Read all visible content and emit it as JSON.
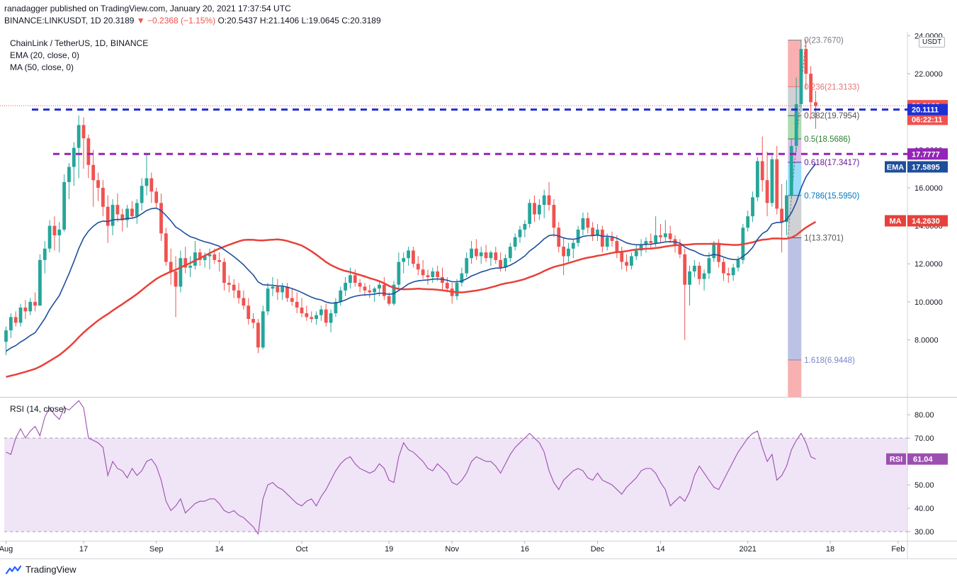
{
  "header": {
    "line1": "ranadagger published on TradingView.com, January 20, 2021 17:37:54 UTC",
    "symbol": "BINANCE:LINKUSDT, 1D",
    "last": "20.3189",
    "change": "−0.2368 (−1.15%)",
    "ohlc": "O:20.5437 H:21.1406 L:19.0645 C:20.3189"
  },
  "legend": {
    "title": "ChainLink / TetherUS, 1D, BINANCE",
    "ema": "EMA (20, close, 0)",
    "ma": "MA (50, close, 0)",
    "rsi": "RSI (14, close)"
  },
  "currency_label": "USDT",
  "brand": "TradingView",
  "colors": {
    "up": "#26a69a",
    "down": "#ef5350",
    "ema": "#1e4e9c",
    "ma": "#e8413a",
    "rsi": "#9c4fb1",
    "blue_dash": "#1f2fd4",
    "purple_dash": "#9425b8"
  },
  "chart_data": {
    "type": "candlestick",
    "title": "ChainLink / TetherUS, 1D, BINANCE",
    "ylim": [
      5.0,
      24.2
    ],
    "y_ticks": [
      "8.0000",
      "10.0000",
      "12.0000",
      "14.0000",
      "16.0000",
      "18.0000",
      "20.0000",
      "22.0000",
      "24.0000"
    ],
    "x_ticks": [
      {
        "label": "Aug",
        "day": 0
      },
      {
        "label": "17",
        "day": 16
      },
      {
        "label": "Sep",
        "day": 31
      },
      {
        "label": "14",
        "day": 44
      },
      {
        "label": "Oct",
        "day": 61
      },
      {
        "label": "19",
        "day": 79
      },
      {
        "label": "Nov",
        "day": 92
      },
      {
        "label": "16",
        "day": 107
      },
      {
        "label": "Dec",
        "day": 122
      },
      {
        "label": "14",
        "day": 135
      },
      {
        "label": "2021",
        "day": 153
      },
      {
        "label": "18",
        "day": 170
      },
      {
        "label": "Feb",
        "day": 184
      }
    ],
    "candles_ohlc": [
      [
        7.9,
        8.7,
        7.2,
        8.5
      ],
      [
        8.5,
        9.4,
        8.1,
        9.2
      ],
      [
        9.2,
        9.5,
        8.7,
        8.9
      ],
      [
        8.9,
        9.9,
        8.7,
        9.7
      ],
      [
        9.7,
        10.1,
        9.1,
        9.5
      ],
      [
        9.5,
        10.2,
        9.3,
        10.0
      ],
      [
        10.0,
        10.5,
        9.5,
        9.8
      ],
      [
        9.8,
        12.5,
        9.8,
        12.2
      ],
      [
        12.2,
        13.2,
        11.5,
        12.8
      ],
      [
        12.8,
        14.3,
        12.6,
        14.0
      ],
      [
        14.0,
        14.5,
        12.7,
        13.5
      ],
      [
        13.5,
        14.2,
        12.6,
        13.8
      ],
      [
        13.8,
        16.7,
        13.7,
        16.3
      ],
      [
        16.3,
        17.3,
        15.4,
        17.1
      ],
      [
        17.1,
        18.4,
        16.1,
        18.1
      ],
      [
        18.1,
        19.8,
        16.5,
        19.3
      ],
      [
        19.3,
        19.7,
        17.0,
        18.6
      ],
      [
        18.6,
        18.8,
        16.5,
        17.2
      ],
      [
        17.2,
        18.0,
        15.0,
        16.4
      ],
      [
        16.4,
        16.8,
        15.3,
        16.0
      ],
      [
        16.0,
        16.4,
        14.5,
        15.0
      ],
      [
        15.0,
        15.6,
        13.1,
        14.0
      ],
      [
        14.0,
        15.4,
        13.5,
        15.1
      ],
      [
        15.1,
        15.7,
        14.2,
        14.6
      ],
      [
        14.6,
        14.9,
        13.7,
        14.3
      ],
      [
        14.3,
        15.1,
        13.9,
        14.9
      ],
      [
        14.9,
        15.3,
        14.4,
        14.5
      ],
      [
        14.5,
        15.4,
        14.1,
        15.2
      ],
      [
        15.2,
        16.5,
        14.8,
        16.1
      ],
      [
        16.1,
        17.8,
        15.6,
        16.5
      ],
      [
        16.5,
        16.8,
        15.2,
        15.8
      ],
      [
        15.8,
        16.0,
        14.9,
        15.2
      ],
      [
        15.2,
        15.7,
        13.2,
        13.6
      ],
      [
        13.6,
        13.9,
        11.9,
        12.1
      ],
      [
        12.1,
        12.8,
        10.9,
        11.6
      ],
      [
        11.6,
        12.4,
        9.2,
        10.8
      ],
      [
        10.8,
        12.7,
        10.5,
        12.3
      ],
      [
        12.3,
        12.9,
        11.5,
        11.8
      ],
      [
        11.8,
        12.4,
        11.3,
        11.9
      ],
      [
        11.9,
        13.2,
        11.7,
        12.6
      ],
      [
        12.6,
        12.8,
        11.9,
        12.2
      ],
      [
        12.2,
        12.6,
        11.8,
        12.4
      ],
      [
        12.4,
        12.8,
        11.7,
        12.5
      ],
      [
        12.5,
        12.8,
        12.0,
        12.2
      ],
      [
        12.2,
        12.6,
        11.6,
        12.1
      ],
      [
        12.1,
        12.3,
        10.6,
        11.0
      ],
      [
        11.0,
        11.4,
        10.5,
        10.9
      ],
      [
        10.9,
        11.2,
        10.2,
        10.6
      ],
      [
        10.6,
        11.0,
        9.9,
        10.2
      ],
      [
        10.2,
        10.6,
        9.6,
        9.8
      ],
      [
        9.8,
        10.2,
        8.8,
        9.1
      ],
      [
        9.1,
        9.4,
        8.6,
        8.9
      ],
      [
        8.9,
        9.1,
        7.3,
        7.6
      ],
      [
        7.6,
        9.8,
        7.5,
        9.5
      ],
      [
        9.5,
        11.0,
        9.3,
        10.7
      ],
      [
        10.7,
        11.3,
        10.3,
        10.8
      ],
      [
        10.8,
        11.2,
        10.1,
        10.5
      ],
      [
        10.5,
        11.0,
        10.1,
        10.8
      ],
      [
        10.8,
        11.0,
        10.0,
        10.2
      ],
      [
        10.2,
        10.7,
        9.8,
        10.0
      ],
      [
        10.0,
        10.5,
        9.4,
        9.7
      ],
      [
        9.7,
        10.2,
        9.2,
        9.4
      ],
      [
        9.4,
        9.8,
        9.0,
        9.2
      ],
      [
        9.2,
        9.5,
        8.9,
        9.1
      ],
      [
        9.1,
        9.5,
        8.8,
        9.3
      ],
      [
        9.3,
        9.8,
        9.0,
        9.6
      ],
      [
        9.6,
        9.9,
        8.7,
        8.9
      ],
      [
        8.9,
        9.6,
        8.4,
        9.4
      ],
      [
        9.4,
        10.2,
        9.2,
        10.0
      ],
      [
        10.0,
        10.8,
        9.8,
        10.6
      ],
      [
        10.6,
        11.3,
        10.3,
        11.0
      ],
      [
        11.0,
        11.8,
        10.7,
        11.4
      ],
      [
        11.4,
        11.7,
        10.8,
        11.0
      ],
      [
        11.0,
        11.2,
        10.5,
        10.8
      ],
      [
        10.8,
        11.0,
        10.3,
        10.6
      ],
      [
        10.6,
        10.9,
        10.2,
        10.5
      ],
      [
        10.5,
        10.8,
        10.0,
        10.7
      ],
      [
        10.7,
        11.1,
        10.3,
        10.9
      ],
      [
        10.9,
        11.3,
        10.1,
        10.3
      ],
      [
        10.3,
        10.5,
        9.8,
        9.9
      ],
      [
        9.9,
        11.1,
        9.8,
        10.9
      ],
      [
        10.9,
        12.6,
        10.7,
        12.1
      ],
      [
        12.1,
        12.6,
        11.5,
        12.3
      ],
      [
        12.3,
        12.9,
        11.9,
        12.7
      ],
      [
        12.7,
        12.9,
        11.8,
        12.0
      ],
      [
        12.0,
        12.4,
        11.4,
        11.7
      ],
      [
        11.7,
        12.2,
        11.2,
        11.4
      ],
      [
        11.4,
        11.7,
        10.9,
        11.3
      ],
      [
        11.3,
        11.8,
        11.0,
        11.6
      ],
      [
        11.6,
        11.9,
        11.1,
        11.3
      ],
      [
        11.3,
        11.8,
        10.6,
        11.0
      ],
      [
        11.0,
        11.3,
        10.5,
        10.7
      ],
      [
        10.7,
        11.0,
        9.9,
        10.3
      ],
      [
        10.3,
        11.2,
        10.1,
        11.0
      ],
      [
        11.0,
        11.8,
        10.8,
        11.5
      ],
      [
        11.5,
        12.6,
        11.3,
        12.3
      ],
      [
        12.3,
        13.2,
        12.0,
        12.8
      ],
      [
        12.8,
        13.3,
        12.2,
        12.4
      ],
      [
        12.4,
        12.9,
        12.0,
        12.6
      ],
      [
        12.6,
        13.0,
        12.1,
        12.3
      ],
      [
        12.3,
        12.7,
        11.9,
        12.6
      ],
      [
        12.6,
        12.9,
        12.0,
        12.2
      ],
      [
        12.2,
        12.6,
        11.6,
        11.8
      ],
      [
        11.8,
        12.5,
        11.6,
        12.3
      ],
      [
        12.3,
        13.1,
        12.1,
        12.9
      ],
      [
        12.9,
        13.6,
        12.7,
        13.4
      ],
      [
        13.4,
        14.0,
        13.1,
        13.8
      ],
      [
        13.8,
        14.3,
        13.4,
        14.1
      ],
      [
        14.1,
        15.4,
        13.9,
        15.2
      ],
      [
        15.2,
        15.6,
        14.2,
        14.6
      ],
      [
        14.6,
        15.4,
        14.3,
        15.1
      ],
      [
        15.1,
        15.9,
        14.4,
        15.6
      ],
      [
        15.6,
        16.3,
        14.8,
        15.1
      ],
      [
        15.1,
        15.4,
        13.4,
        13.9
      ],
      [
        13.9,
        14.2,
        12.6,
        12.9
      ],
      [
        12.9,
        13.4,
        11.4,
        12.4
      ],
      [
        12.4,
        13.1,
        12.1,
        12.8
      ],
      [
        12.8,
        13.3,
        12.3,
        13.1
      ],
      [
        13.1,
        14.0,
        12.9,
        13.8
      ],
      [
        13.8,
        14.7,
        13.5,
        14.4
      ],
      [
        14.4,
        14.7,
        13.6,
        13.9
      ],
      [
        13.9,
        14.2,
        13.2,
        13.5
      ],
      [
        13.5,
        14.1,
        13.2,
        13.8
      ],
      [
        13.8,
        14.0,
        12.6,
        12.9
      ],
      [
        12.9,
        13.6,
        12.7,
        13.4
      ],
      [
        13.4,
        13.7,
        12.9,
        13.2
      ],
      [
        13.2,
        13.5,
        12.3,
        12.6
      ],
      [
        12.6,
        12.9,
        11.7,
        12.1
      ],
      [
        12.1,
        12.5,
        11.6,
        11.9
      ],
      [
        11.9,
        12.6,
        11.7,
        12.4
      ],
      [
        12.4,
        13.0,
        12.2,
        12.7
      ],
      [
        12.7,
        13.3,
        12.4,
        13.0
      ],
      [
        13.0,
        13.4,
        12.6,
        13.2
      ],
      [
        13.2,
        13.6,
        12.8,
        13.1
      ],
      [
        13.1,
        14.5,
        12.9,
        13.5
      ],
      [
        13.5,
        14.1,
        13.1,
        13.4
      ],
      [
        13.4,
        14.3,
        13.2,
        13.6
      ],
      [
        13.6,
        14.0,
        13.1,
        13.3
      ],
      [
        13.3,
        13.5,
        12.6,
        13.0
      ],
      [
        13.0,
        13.3,
        12.3,
        12.5
      ],
      [
        12.5,
        12.8,
        8.0,
        10.9
      ],
      [
        10.9,
        11.9,
        9.8,
        11.6
      ],
      [
        11.6,
        12.2,
        11.3,
        11.9
      ],
      [
        11.9,
        12.1,
        10.9,
        11.2
      ],
      [
        11.2,
        11.7,
        10.6,
        11.5
      ],
      [
        11.5,
        12.6,
        11.2,
        12.3
      ],
      [
        12.3,
        13.2,
        12.1,
        13.1
      ],
      [
        13.1,
        13.3,
        11.8,
        12.1
      ],
      [
        12.1,
        12.3,
        11.1,
        11.5
      ],
      [
        11.5,
        11.8,
        11.0,
        11.4
      ],
      [
        11.4,
        12.0,
        11.1,
        11.8
      ],
      [
        11.8,
        12.4,
        11.6,
        12.2
      ],
      [
        12.2,
        14.1,
        12.0,
        13.9
      ],
      [
        13.9,
        14.8,
        13.7,
        14.5
      ],
      [
        14.5,
        15.8,
        14.2,
        15.5
      ],
      [
        15.5,
        17.6,
        15.3,
        17.4
      ],
      [
        17.4,
        18.7,
        15.8,
        16.4
      ],
      [
        16.4,
        17.9,
        14.5,
        15.2
      ],
      [
        15.2,
        17.7,
        15.0,
        17.5
      ],
      [
        17.5,
        18.2,
        14.6,
        14.9
      ],
      [
        14.9,
        16.2,
        12.6,
        14.2
      ],
      [
        14.2,
        16.4,
        13.5,
        15.6
      ],
      [
        15.6,
        18.6,
        15.4,
        18.2
      ],
      [
        18.2,
        21.8,
        17.9,
        20.4
      ],
      [
        20.4,
        23.8,
        20.0,
        23.3
      ],
      [
        23.3,
        23.8,
        21.2,
        22.0
      ],
      [
        22.0,
        22.4,
        19.6,
        20.5
      ],
      [
        20.5,
        21.1,
        19.1,
        20.3
      ]
    ],
    "series": [
      {
        "name": "EMA (20, close, 0)",
        "end_value": "17.5895"
      },
      {
        "name": "MA (50, close, 0)",
        "end_value": "14.2630"
      }
    ],
    "levels": [
      {
        "label": "20.1111",
        "value": 20.1111,
        "color": "#1f2fd4"
      },
      {
        "label": "17.7777",
        "value": 17.7777,
        "color": "#9425b8"
      }
    ],
    "fib": [
      {
        "label": "0(23.7670)",
        "value": 23.767
      },
      {
        "label": "0.236(21.3133)",
        "value": 21.3133
      },
      {
        "label": "0.382(19.7954)",
        "value": 19.7954
      },
      {
        "label": "0.5(18.5686)",
        "value": 18.5686
      },
      {
        "label": "0.618(17.3417)",
        "value": 17.3417
      },
      {
        "label": "0.786(15.5950)",
        "value": 15.595
      },
      {
        "label": "1(13.3701)",
        "value": 13.3701
      },
      {
        "label": "1.618(6.9448)",
        "value": 6.9448
      }
    ],
    "price_tags": [
      {
        "label": "20.3189",
        "value": 20.3189,
        "color": "#ef5350"
      },
      {
        "label": "06:22:11",
        "value": 19.6,
        "color": "#ef5350"
      },
      {
        "label": "20.1111",
        "value": 20.1111,
        "color": "#1f2fd4"
      },
      {
        "label": "17.7777",
        "value": 17.7777,
        "color": "#9425b8"
      },
      {
        "label": "EMA 17.5895",
        "value": 17.1,
        "color": "#1e4e9c"
      },
      {
        "label": "MA 14.2630",
        "value": 14.263,
        "color": "#e8413a"
      }
    ],
    "rsi": {
      "ylim": [
        27,
        87
      ],
      "y_ticks": [
        "30.00",
        "40.00",
        "50.00",
        "60.00",
        "70.00",
        "80.00"
      ],
      "band": [
        30,
        70
      ],
      "current": "61.04",
      "values": [
        64,
        63,
        70,
        74,
        70,
        73,
        75,
        71,
        79,
        83,
        80,
        78,
        83,
        82,
        84,
        86,
        83,
        70,
        69,
        68,
        66,
        54,
        60,
        57,
        56,
        53,
        57,
        54,
        56,
        60,
        61,
        58,
        52,
        43,
        39,
        41,
        44,
        38,
        40,
        42,
        43,
        43,
        44,
        44,
        42,
        39,
        38,
        39,
        37,
        36,
        34,
        32,
        29,
        44,
        50,
        51,
        49,
        48,
        46,
        44,
        42,
        41,
        43,
        44,
        41,
        45,
        48,
        52,
        56,
        59,
        61,
        62,
        59,
        57,
        56,
        55,
        56,
        59,
        57,
        52,
        51,
        62,
        68,
        65,
        64,
        62,
        60,
        57,
        56,
        59,
        57,
        55,
        51,
        50,
        52,
        55,
        60,
        62,
        61,
        60,
        60,
        58,
        55,
        59,
        63,
        66,
        68,
        70,
        72,
        70,
        68,
        64,
        56,
        51,
        48,
        52,
        54,
        56,
        57,
        56,
        53,
        52,
        55,
        52,
        51,
        50,
        48,
        46,
        49,
        51,
        53,
        56,
        57,
        57,
        55,
        51,
        48,
        41,
        43,
        45,
        43,
        47,
        54,
        58,
        55,
        52,
        49,
        48,
        52,
        56,
        60,
        64,
        67,
        70,
        72,
        73,
        66,
        60,
        63,
        52,
        54,
        58,
        65,
        69,
        72,
        68,
        62,
        61
      ]
    }
  }
}
